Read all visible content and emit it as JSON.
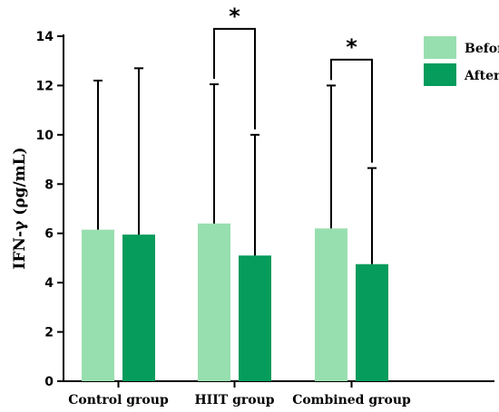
{
  "chart_data": {
    "type": "bar",
    "title": "",
    "xlabel": "",
    "ylabel": "IFN-γ (ρg/mL)",
    "ylim": [
      0,
      14
    ],
    "yticks": [
      0,
      2,
      4,
      6,
      8,
      10,
      12,
      14
    ],
    "categories": [
      "Control group",
      "HIIT group",
      "Combined group"
    ],
    "series": [
      {
        "name": "Before",
        "color": "#98dfaf",
        "values": [
          6.15,
          6.4,
          6.2
        ],
        "error_upper": [
          12.2,
          12.05,
          12.0
        ]
      },
      {
        "name": "After",
        "color": "#059c5c",
        "values": [
          5.95,
          5.1,
          4.75
        ],
        "error_upper": [
          12.7,
          10.0,
          8.65
        ]
      }
    ],
    "legend_position": "top-right",
    "grid": false,
    "significance": [
      {
        "category": "HIIT group",
        "label": "*",
        "bracket_y": 14.3
      },
      {
        "category": "Combined group",
        "label": "*",
        "bracket_y": 13.05
      }
    ]
  }
}
